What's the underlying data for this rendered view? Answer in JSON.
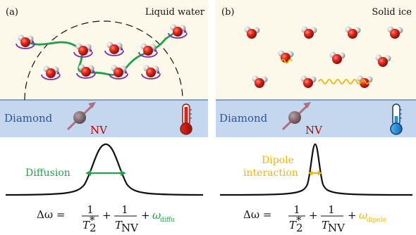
{
  "panels": [
    {
      "tag": "(a)",
      "title": "Liquid water",
      "substrate_label": "Diamond",
      "sensor_label": "NV",
      "peak_label": "Diffusion",
      "eq": {
        "lhs": "Δω =",
        "one": "1",
        "t2": "T",
        "t2_sup": "*",
        "t2_sub": "2",
        "plus": "+",
        "tnv": "T",
        "tnv_sub": "NV",
        "omega": "ω",
        "omega_sub": "diffu"
      }
    },
    {
      "tag": "(b)",
      "title": "Solid ice",
      "substrate_label": "Diamond",
      "sensor_label": "NV",
      "peak_label_1": "Dipole",
      "peak_label_2": "interaction",
      "eq": {
        "lhs": "Δω =",
        "one": "1",
        "t2": "T",
        "t2_sup": "*",
        "t2_sub": "2",
        "plus": "+",
        "tnv": "T",
        "tnv_sub": "NV",
        "omega": "ω",
        "omega_sub": "dipole"
      }
    }
  ],
  "colors": {
    "panel_bg": "#fcf8ea",
    "diamond_bg": "#c5d7ee",
    "oxygen": "#d8241f",
    "hydrogen": "#c8c8c8",
    "rotation": "#7b2fa6",
    "diffusion": "#22a04b",
    "dipole": "#f2b400",
    "nv": "#c00000"
  }
}
